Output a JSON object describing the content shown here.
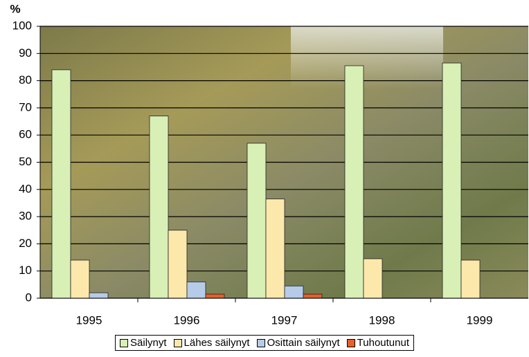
{
  "chart_data": {
    "type": "bar",
    "y_label": "%",
    "categories": [
      "1995",
      "1996",
      "1997",
      "1998",
      "1999"
    ],
    "series": [
      {
        "name": "Säilynyt",
        "color": "#d8efb6",
        "values": [
          84,
          67,
          57,
          85.5,
          86.5
        ]
      },
      {
        "name": "Lähes säilynyt",
        "color": "#fde8ac",
        "values": [
          14,
          25,
          36.5,
          14.5,
          14
        ]
      },
      {
        "name": "Osittain säilynyt",
        "color": "#b6cbe8",
        "values": [
          2,
          6,
          4.5,
          0,
          0
        ]
      },
      {
        "name": "Tuhoutunut",
        "color": "#e5602a",
        "values": [
          0,
          1.5,
          1.5,
          0,
          0
        ]
      }
    ],
    "ylim": [
      0,
      100
    ],
    "yticks": [
      0,
      10,
      20,
      30,
      40,
      50,
      60,
      70,
      80,
      90,
      100
    ],
    "grid": true
  }
}
